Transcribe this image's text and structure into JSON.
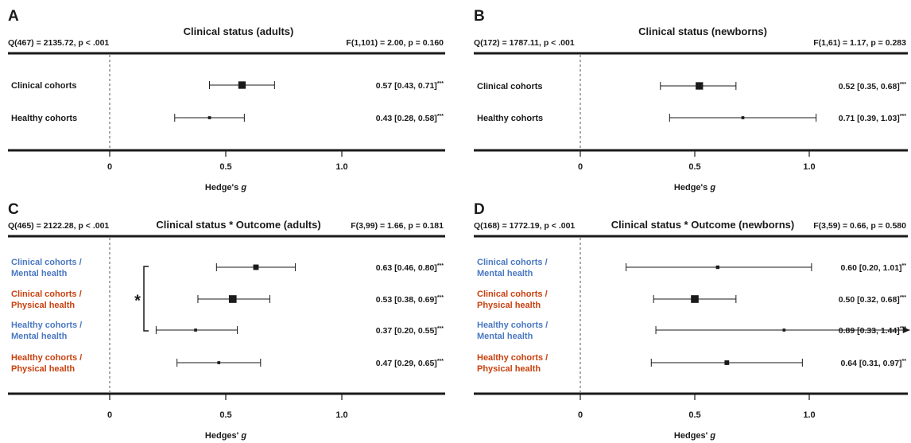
{
  "colors": {
    "ink": "#1a1a1a",
    "mental": "#4a78c2",
    "physical": "#c8410f"
  },
  "chart_data": [
    {
      "type": "forest",
      "panel_letter": "A",
      "title": "Clinical status (adults)",
      "q_stat": "Q(467) = 2135.72, p < .001",
      "f_stat": "F(1,101) = 2.00, p = 0.160",
      "xlabel_main": "Hedge's",
      "xlabel_italic": "g",
      "xticks": [
        "0",
        "0.5",
        "1.0"
      ],
      "tick_values": [
        0,
        0.5,
        1.0
      ],
      "xlim": [
        -0.45,
        1.45
      ],
      "comparison_marker": "",
      "rows": [
        {
          "label": [
            "Clinical cohorts"
          ],
          "group": "plain",
          "estimate": 0.57,
          "ci_low": 0.43,
          "ci_high": 0.71,
          "weight": 0.9,
          "text": "0.57 [0.43, 0.71]",
          "sig": "***",
          "arrow": false
        },
        {
          "label": [
            "Healthy cohorts"
          ],
          "group": "plain",
          "estimate": 0.43,
          "ci_low": 0.28,
          "ci_high": 0.58,
          "weight": 0.1,
          "text": "0.43 [0.28, 0.58]",
          "sig": "***",
          "arrow": false
        }
      ]
    },
    {
      "type": "forest",
      "panel_letter": "B",
      "title": "Clinical status (newborns)",
      "q_stat": "Q(172) = 1787.11, p < .001",
      "f_stat": "F(1,61) = 1.17, p = 0.283",
      "xlabel_main": "Hedge's",
      "xlabel_italic": "g",
      "xticks": [
        "0",
        "0.5",
        "1.0"
      ],
      "tick_values": [
        0,
        0.5,
        1.0
      ],
      "xlim": [
        -0.45,
        1.45
      ],
      "comparison_marker": "",
      "rows": [
        {
          "label": [
            "Clinical cohorts"
          ],
          "group": "plain",
          "estimate": 0.52,
          "ci_low": 0.35,
          "ci_high": 0.68,
          "weight": 0.9,
          "text": "0.52 [0.35, 0.68]",
          "sig": "***",
          "arrow": false
        },
        {
          "label": [
            "Healthy cohorts"
          ],
          "group": "plain",
          "estimate": 0.71,
          "ci_low": 0.39,
          "ci_high": 1.03,
          "weight": 0.1,
          "text": "0.71 [0.39, 1.03]",
          "sig": "***",
          "arrow": false
        }
      ]
    },
    {
      "type": "forest",
      "panel_letter": "C",
      "title": "Clinical status * Outcome (adults)",
      "q_stat": "Q(465) = 2122.28, p < .001",
      "f_stat": "F(3,99) = 1.66, p = 0.181",
      "xlabel_main": "Hedges'",
      "xlabel_italic": "g",
      "xticks": [
        "0",
        "0.5",
        "1.0"
      ],
      "tick_values": [
        0,
        0.5,
        1.0
      ],
      "xlim": [
        -0.45,
        1.45
      ],
      "comparison_marker": "*",
      "rows": [
        {
          "label": [
            "Clinical cohorts /",
            "Mental health"
          ],
          "group": "mental",
          "estimate": 0.63,
          "ci_low": 0.46,
          "ci_high": 0.8,
          "weight": 0.55,
          "text": "0.63 [0.46, 0.80]",
          "sig": "***",
          "arrow": false
        },
        {
          "label": [
            "Clinical cohorts /",
            "Physical health"
          ],
          "group": "physical",
          "estimate": 0.53,
          "ci_low": 0.38,
          "ci_high": 0.69,
          "weight": 0.95,
          "text": "0.53 [0.38, 0.69]",
          "sig": "***",
          "arrow": false
        },
        {
          "label": [
            "Healthy cohorts /",
            "Mental health"
          ],
          "group": "mental",
          "estimate": 0.37,
          "ci_low": 0.2,
          "ci_high": 0.55,
          "weight": 0.1,
          "text": "0.37 [0.20, 0.55]",
          "sig": "***",
          "arrow": false
        },
        {
          "label": [
            "Healthy cohorts /",
            "Physical health"
          ],
          "group": "physical",
          "estimate": 0.47,
          "ci_low": 0.29,
          "ci_high": 0.65,
          "weight": 0.1,
          "text": "0.47 [0.29, 0.65]",
          "sig": "***",
          "arrow": false
        }
      ]
    },
    {
      "type": "forest",
      "panel_letter": "D",
      "title": "Clinical status * Outcome (newborns)",
      "q_stat": "Q(168) = 1772.19, p < .001",
      "f_stat": "F(3,59) = 0.66, p = 0.580",
      "xlabel_main": "Hedges'",
      "xlabel_italic": "g",
      "xticks": [
        "0",
        "0.5",
        "1.0"
      ],
      "tick_values": [
        0,
        0.5,
        1.0
      ],
      "xlim": [
        -0.45,
        1.45
      ],
      "comparison_marker": "",
      "rows": [
        {
          "label": [
            "Clinical cohorts /",
            "Mental health"
          ],
          "group": "mental",
          "estimate": 0.6,
          "ci_low": 0.2,
          "ci_high": 1.01,
          "weight": 0.2,
          "text": "0.60 [0.20, 1.01]",
          "sig": "**",
          "arrow": false
        },
        {
          "label": [
            "Clinical cohorts /",
            "Physical health"
          ],
          "group": "physical",
          "estimate": 0.5,
          "ci_low": 0.32,
          "ci_high": 0.68,
          "weight": 0.95,
          "text": "0.50 [0.32, 0.68]",
          "sig": "***",
          "arrow": false
        },
        {
          "label": [
            "Healthy cohorts /",
            "Mental health"
          ],
          "group": "mental",
          "estimate": 0.89,
          "ci_low": 0.33,
          "ci_high": 1.44,
          "weight": 0.1,
          "text": "0.89 [0.33, 1.44]",
          "sig": "***",
          "arrow": true
        },
        {
          "label": [
            "Healthy cohorts /",
            "Physical health"
          ],
          "group": "physical",
          "estimate": 0.64,
          "ci_low": 0.31,
          "ci_high": 0.97,
          "weight": 0.4,
          "text": "0.64 [0.31, 0.97]",
          "sig": "**",
          "arrow": false
        }
      ]
    }
  ]
}
